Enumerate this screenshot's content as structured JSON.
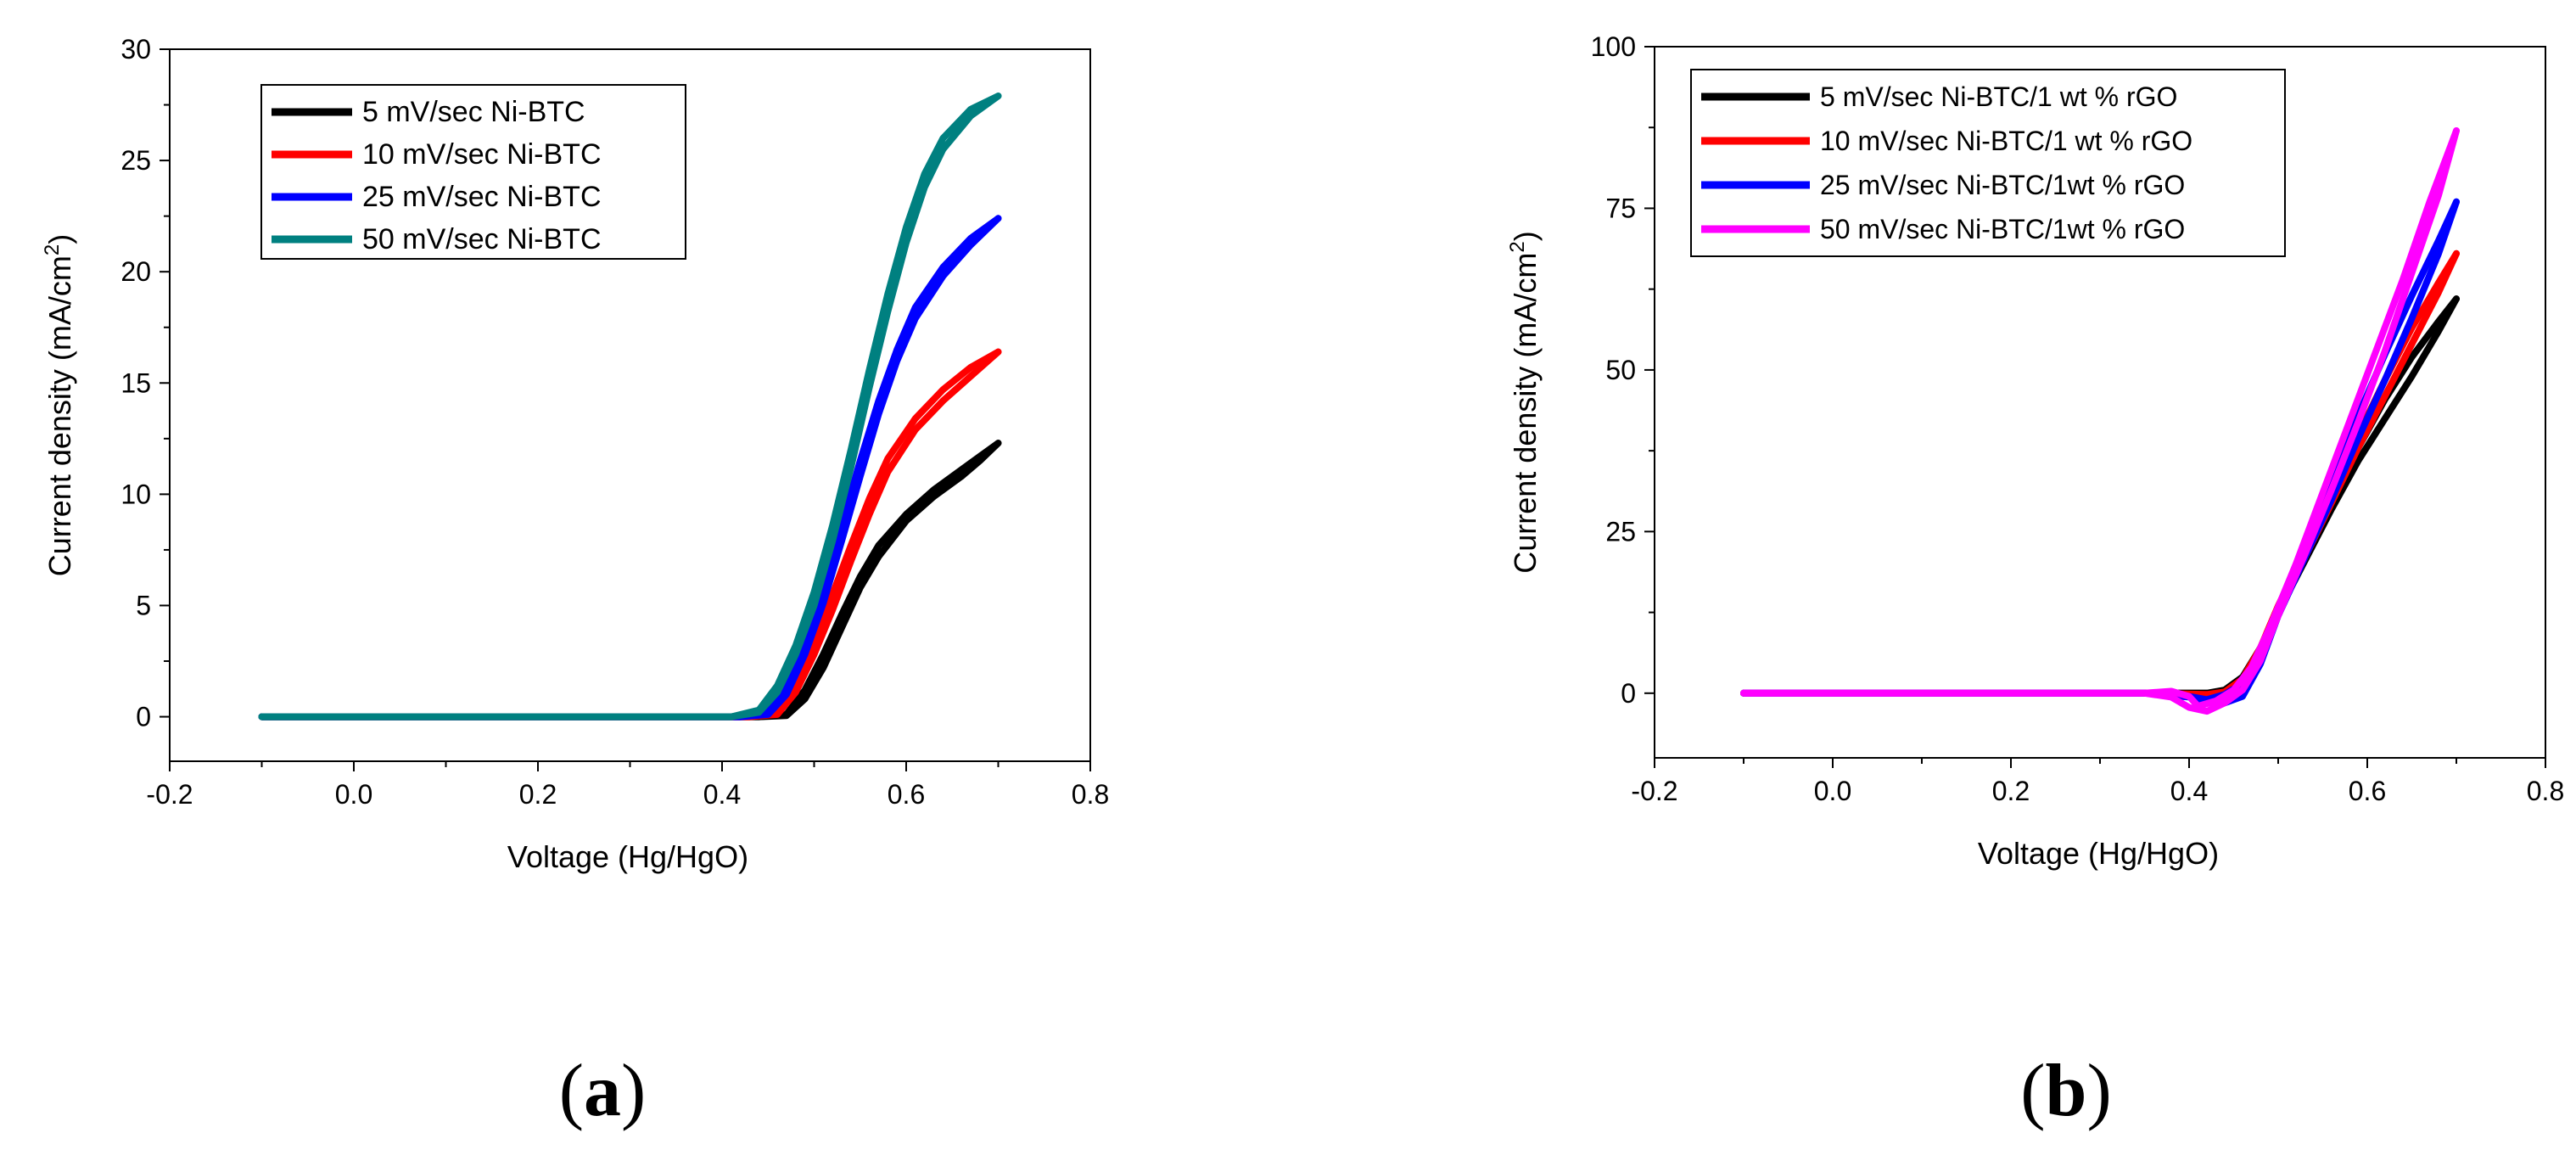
{
  "chart_data": [
    {
      "type": "line",
      "panel_label": "a",
      "xlabel": "Voltage (Hg/HgO)",
      "ylabel_main": "Current density (mA/cm",
      "ylabel_sup": "2",
      "ylabel_close": ")",
      "xlim": [
        -0.2,
        0.8
      ],
      "ylim": [
        -2,
        30
      ],
      "xticks": [
        -0.2,
        0.0,
        0.2,
        0.4,
        0.6,
        0.8
      ],
      "xtick_labels": [
        "-0.2",
        "0.0",
        "0.2",
        "0.4",
        "0.6",
        "0.8"
      ],
      "yticks": [
        0,
        5,
        10,
        15,
        20,
        25,
        30
      ],
      "ytick_labels": [
        "0",
        "5",
        "10",
        "15",
        "20",
        "25",
        "30"
      ],
      "legend_position": "top-left",
      "series": [
        {
          "name": "5 mV/sec Ni-BTC",
          "color": "#000000",
          "forward": [
            [
              -0.1,
              0
            ],
            [
              0.3,
              0
            ],
            [
              0.44,
              0
            ],
            [
              0.47,
              0.1
            ],
            [
              0.49,
              1.2
            ],
            [
              0.51,
              2.8
            ],
            [
              0.53,
              4.6
            ],
            [
              0.55,
              6.3
            ],
            [
              0.57,
              7.7
            ],
            [
              0.6,
              9.1
            ],
            [
              0.63,
              10.2
            ],
            [
              0.66,
              11.1
            ],
            [
              0.68,
              11.7
            ],
            [
              0.7,
              12.3
            ]
          ],
          "reverse": [
            [
              0.7,
              12.3
            ],
            [
              0.68,
              11.5
            ],
            [
              0.66,
              10.8
            ],
            [
              0.63,
              9.9
            ],
            [
              0.6,
              8.8
            ],
            [
              0.57,
              7.2
            ],
            [
              0.55,
              5.8
            ],
            [
              0.53,
              4.0
            ],
            [
              0.51,
              2.2
            ],
            [
              0.49,
              0.8
            ],
            [
              0.47,
              0.05
            ],
            [
              0.44,
              0
            ],
            [
              0.3,
              0
            ],
            [
              -0.1,
              0
            ]
          ]
        },
        {
          "name": "10 mV/sec Ni-BTC",
          "color": "#ff0000",
          "forward": [
            [
              -0.1,
              0
            ],
            [
              0.3,
              0
            ],
            [
              0.43,
              0
            ],
            [
              0.46,
              0.2
            ],
            [
              0.48,
              1.5
            ],
            [
              0.5,
              3.3
            ],
            [
              0.52,
              5.5
            ],
            [
              0.54,
              7.7
            ],
            [
              0.56,
              9.8
            ],
            [
              0.58,
              11.6
            ],
            [
              0.61,
              13.4
            ],
            [
              0.64,
              14.7
            ],
            [
              0.67,
              15.7
            ],
            [
              0.7,
              16.4
            ]
          ],
          "reverse": [
            [
              0.7,
              16.4
            ],
            [
              0.67,
              15.3
            ],
            [
              0.64,
              14.2
            ],
            [
              0.61,
              12.9
            ],
            [
              0.58,
              11.0
            ],
            [
              0.56,
              9.1
            ],
            [
              0.54,
              7.0
            ],
            [
              0.52,
              4.8
            ],
            [
              0.5,
              2.8
            ],
            [
              0.48,
              1.1
            ],
            [
              0.46,
              0.1
            ],
            [
              0.43,
              0
            ],
            [
              0.3,
              0
            ],
            [
              -0.1,
              0
            ]
          ]
        },
        {
          "name": "25 mV/sec Ni-BTC",
          "color": "#0000ff",
          "forward": [
            [
              -0.1,
              0
            ],
            [
              0.3,
              0
            ],
            [
              0.42,
              0
            ],
            [
              0.45,
              0.2
            ],
            [
              0.47,
              1.4
            ],
            [
              0.49,
              3.3
            ],
            [
              0.51,
              5.8
            ],
            [
              0.53,
              8.6
            ],
            [
              0.55,
              11.5
            ],
            [
              0.57,
              14.2
            ],
            [
              0.59,
              16.5
            ],
            [
              0.61,
              18.4
            ],
            [
              0.64,
              20.2
            ],
            [
              0.67,
              21.5
            ],
            [
              0.7,
              22.4
            ]
          ],
          "reverse": [
            [
              0.7,
              22.4
            ],
            [
              0.67,
              21.2
            ],
            [
              0.64,
              19.8
            ],
            [
              0.61,
              17.9
            ],
            [
              0.59,
              16.0
            ],
            [
              0.57,
              13.6
            ],
            [
              0.55,
              10.8
            ],
            [
              0.53,
              7.9
            ],
            [
              0.51,
              5.1
            ],
            [
              0.49,
              2.8
            ],
            [
              0.47,
              1.0
            ],
            [
              0.45,
              0.1
            ],
            [
              0.42,
              0
            ],
            [
              0.3,
              0
            ],
            [
              -0.1,
              0
            ]
          ]
        },
        {
          "name": "50 mV/sec Ni-BTC",
          "color": "#008080",
          "forward": [
            [
              -0.1,
              0
            ],
            [
              0.3,
              0
            ],
            [
              0.41,
              0
            ],
            [
              0.44,
              0.3
            ],
            [
              0.46,
              1.4
            ],
            [
              0.48,
              3.2
            ],
            [
              0.5,
              5.6
            ],
            [
              0.52,
              8.6
            ],
            [
              0.54,
              12.0
            ],
            [
              0.56,
              15.6
            ],
            [
              0.58,
              19.0
            ],
            [
              0.6,
              22.0
            ],
            [
              0.62,
              24.4
            ],
            [
              0.64,
              26.0
            ],
            [
              0.67,
              27.3
            ],
            [
              0.7,
              27.9
            ]
          ],
          "reverse": [
            [
              0.7,
              27.9
            ],
            [
              0.67,
              27.0
            ],
            [
              0.64,
              25.5
            ],
            [
              0.62,
              23.8
            ],
            [
              0.6,
              21.3
            ],
            [
              0.58,
              18.2
            ],
            [
              0.56,
              14.8
            ],
            [
              0.54,
              11.2
            ],
            [
              0.52,
              7.9
            ],
            [
              0.5,
              5.0
            ],
            [
              0.48,
              2.8
            ],
            [
              0.46,
              1.1
            ],
            [
              0.44,
              0.2
            ],
            [
              0.41,
              0
            ],
            [
              0.3,
              0
            ],
            [
              -0.1,
              0
            ]
          ]
        }
      ]
    },
    {
      "type": "line",
      "panel_label": "b",
      "xlabel": "Voltage (Hg/HgO)",
      "ylabel_main": "Current density (mA/cm",
      "ylabel_sup": "2",
      "ylabel_close": ")",
      "xlim": [
        -0.2,
        0.8
      ],
      "ylim": [
        -10,
        100
      ],
      "xticks": [
        -0.2,
        0.0,
        0.2,
        0.4,
        0.6,
        0.8
      ],
      "xtick_labels": [
        "-0.2",
        "0.0",
        "0.2",
        "0.4",
        "0.6",
        "0.8"
      ],
      "yticks": [
        0,
        25,
        50,
        75,
        100
      ],
      "ytick_labels": [
        "0",
        "25",
        "50",
        "75",
        "100"
      ],
      "legend_position": "top-left",
      "series": [
        {
          "name": "5 mV/sec Ni-BTC/1 wt % rGO",
          "color": "#000000",
          "forward": [
            [
              -0.1,
              0
            ],
            [
              0.35,
              0
            ],
            [
              0.42,
              0
            ],
            [
              0.44,
              0.5
            ],
            [
              0.46,
              2.5
            ],
            [
              0.48,
              7
            ],
            [
              0.5,
              13
            ],
            [
              0.53,
              21
            ],
            [
              0.56,
              30
            ],
            [
              0.59,
              38
            ],
            [
              0.62,
              45.5
            ],
            [
              0.65,
              52
            ],
            [
              0.68,
              57.5
            ],
            [
              0.7,
              61
            ]
          ],
          "reverse": [
            [
              0.7,
              61
            ],
            [
              0.68,
              56
            ],
            [
              0.65,
              49
            ],
            [
              0.62,
              42.5
            ],
            [
              0.59,
              36
            ],
            [
              0.56,
              28.5
            ],
            [
              0.53,
              20.5
            ],
            [
              0.5,
              12.5
            ],
            [
              0.48,
              5.5
            ],
            [
              0.46,
              0.5
            ],
            [
              0.44,
              -0.4
            ],
            [
              0.42,
              0
            ],
            [
              0.35,
              0
            ],
            [
              -0.1,
              0
            ]
          ]
        },
        {
          "name": "10 mV/sec Ni-BTC/1 wt % rGO",
          "color": "#ff0000",
          "forward": [
            [
              -0.1,
              0
            ],
            [
              0.35,
              0
            ],
            [
              0.42,
              -0.2
            ],
            [
              0.44,
              0.2
            ],
            [
              0.46,
              2.2
            ],
            [
              0.48,
              7
            ],
            [
              0.5,
              13.5
            ],
            [
              0.53,
              22
            ],
            [
              0.56,
              31
            ],
            [
              0.59,
              40
            ],
            [
              0.62,
              48.5
            ],
            [
              0.65,
              56.5
            ],
            [
              0.68,
              63.5
            ],
            [
              0.7,
              68
            ]
          ],
          "reverse": [
            [
              0.7,
              68
            ],
            [
              0.68,
              62
            ],
            [
              0.65,
              54
            ],
            [
              0.62,
              46
            ],
            [
              0.59,
              38
            ],
            [
              0.56,
              29.5
            ],
            [
              0.53,
              21
            ],
            [
              0.5,
              12.5
            ],
            [
              0.48,
              5
            ],
            [
              0.46,
              0
            ],
            [
              0.44,
              -0.8
            ],
            [
              0.42,
              -0.5
            ],
            [
              0.35,
              0
            ],
            [
              -0.1,
              0
            ]
          ]
        },
        {
          "name": "25 mV/sec Ni-BTC/1wt % rGO",
          "color": "#0000ff",
          "forward": [
            [
              -0.1,
              0
            ],
            [
              0.35,
              0
            ],
            [
              0.4,
              -0.5
            ],
            [
              0.42,
              -1
            ],
            [
              0.44,
              -0.2
            ],
            [
              0.46,
              1.5
            ],
            [
              0.48,
              6
            ],
            [
              0.5,
              13
            ],
            [
              0.53,
              23
            ],
            [
              0.56,
              33
            ],
            [
              0.59,
              43
            ],
            [
              0.62,
              52.5
            ],
            [
              0.65,
              61.5
            ],
            [
              0.68,
              70
            ],
            [
              0.7,
              76
            ]
          ],
          "reverse": [
            [
              0.7,
              76
            ],
            [
              0.68,
              68
            ],
            [
              0.65,
              58
            ],
            [
              0.62,
              48.5
            ],
            [
              0.59,
              39.5
            ],
            [
              0.56,
              30
            ],
            [
              0.53,
              21
            ],
            [
              0.5,
              12
            ],
            [
              0.48,
              4.5
            ],
            [
              0.46,
              -0.5
            ],
            [
              0.44,
              -1.5
            ],
            [
              0.42,
              -1.2
            ],
            [
              0.4,
              -0.6
            ],
            [
              0.35,
              0
            ],
            [
              -0.1,
              0
            ]
          ]
        },
        {
          "name": "50 mV/sec Ni-BTC/1wt % rGO",
          "color": "#ff00ff",
          "forward": [
            [
              -0.1,
              0
            ],
            [
              0.35,
              0
            ],
            [
              0.38,
              0.3
            ],
            [
              0.4,
              -0.5
            ],
            [
              0.41,
              -2
            ],
            [
              0.43,
              -1.2
            ],
            [
              0.45,
              0.5
            ],
            [
              0.47,
              4
            ],
            [
              0.49,
              10
            ],
            [
              0.52,
              20
            ],
            [
              0.55,
              31
            ],
            [
              0.58,
              42
            ],
            [
              0.61,
              53
            ],
            [
              0.64,
              64
            ],
            [
              0.67,
              76
            ],
            [
              0.7,
              87
            ]
          ],
          "reverse": [
            [
              0.7,
              87
            ],
            [
              0.68,
              77
            ],
            [
              0.65,
              65
            ],
            [
              0.62,
              53
            ],
            [
              0.59,
              42
            ],
            [
              0.56,
              31.5
            ],
            [
              0.53,
              21.5
            ],
            [
              0.5,
              12
            ],
            [
              0.48,
              5
            ],
            [
              0.46,
              0.5
            ],
            [
              0.44,
              -1.5
            ],
            [
              0.42,
              -2.8
            ],
            [
              0.4,
              -2.2
            ],
            [
              0.38,
              -0.6
            ],
            [
              0.35,
              0
            ],
            [
              -0.1,
              0
            ]
          ]
        }
      ]
    }
  ]
}
